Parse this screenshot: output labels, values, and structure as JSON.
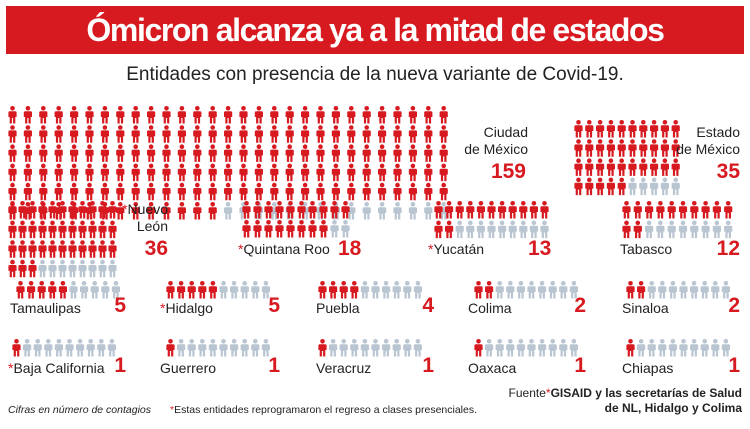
{
  "title": "Ómicron alcanza ya a la mitad de estados",
  "subtitle": "Entidades con presencia de la nueva variante de Covid-19.",
  "colors": {
    "accent": "#d71920",
    "inactive": "#b9c5d1",
    "text": "#222222"
  },
  "icon": "person-icon",
  "chart_data": {
    "type": "pictograph",
    "title": "Ómicron alcanza ya a la mitad de estados",
    "subtitle": "Entidades con presencia de la nueva variante de Covid-19.",
    "unit_note": "Cifras en número de contagios",
    "asterisk_note": "Estas entidades reprogramaron el regreso a clases presenciales.",
    "entities": [
      {
        "name": "Ciudad de México",
        "line1": "Ciudad",
        "line2": "de México",
        "value": 159,
        "asterisk": false
      },
      {
        "name": "Estado de México",
        "line1": "Estado",
        "line2": "de México",
        "value": 35,
        "asterisk": false
      },
      {
        "name": "Nuevo León",
        "line1": "Nuevo",
        "line2": "León",
        "value": 36,
        "asterisk": true
      },
      {
        "name": "Quintana Roo",
        "line1": "Quintana Roo",
        "value": 18,
        "asterisk": true
      },
      {
        "name": "Yucatán",
        "line1": "Yucatán",
        "value": 13,
        "asterisk": true
      },
      {
        "name": "Tabasco",
        "line1": "Tabasco",
        "value": 12,
        "asterisk": false
      },
      {
        "name": "Tamaulipas",
        "line1": "Tamaulipas",
        "value": 5,
        "asterisk": false
      },
      {
        "name": "Hidalgo",
        "line1": "Hidalgo",
        "value": 5,
        "asterisk": true
      },
      {
        "name": "Puebla",
        "line1": "Puebla",
        "value": 4,
        "asterisk": false
      },
      {
        "name": "Colima",
        "line1": "Colima",
        "value": 2,
        "asterisk": false
      },
      {
        "name": "Sinaloa",
        "line1": "Sinaloa",
        "value": 2,
        "asterisk": false
      },
      {
        "name": "Baja California",
        "line1": "Baja California",
        "value": 1,
        "asterisk": true
      },
      {
        "name": "Guerrero",
        "line1": "Guerrero",
        "value": 1,
        "asterisk": false
      },
      {
        "name": "Veracruz",
        "line1": "Veracruz",
        "value": 1,
        "asterisk": false
      },
      {
        "name": "Oaxaca",
        "line1": "Oaxaca",
        "value": 1,
        "asterisk": false
      },
      {
        "name": "Chiapas",
        "line1": "Chiapas",
        "value": 1,
        "asterisk": false
      }
    ]
  },
  "footer": {
    "note_left": "Cifras en número de contagios",
    "asterisk": "*",
    "note_center": "Estas entidades reprogramaron el regreso a clases presenciales.",
    "source_label": "Fuente",
    "source_line1": "GISAID y las secretarías de Salud",
    "source_line2": "de NL, Hidalgo y Colima"
  }
}
